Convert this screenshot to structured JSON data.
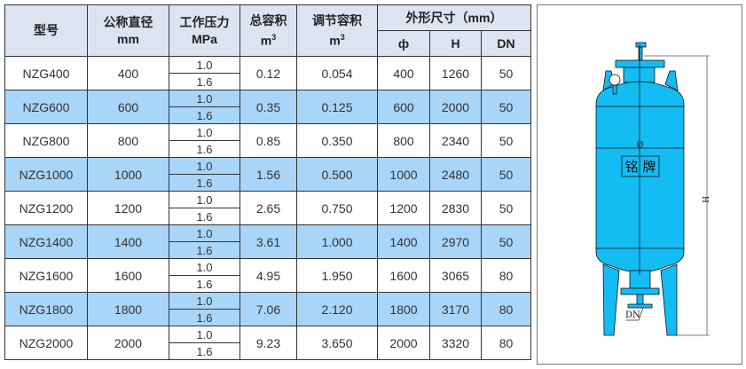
{
  "headers": {
    "model": "型号",
    "diameter": "公称直径",
    "diameter_unit": "mm",
    "pressure": "工作压力",
    "pressure_unit": "MPa",
    "total_volume": "总容积",
    "total_unit": "m",
    "regulating_volume": "调节容积",
    "regulating_unit": "m",
    "superscript": "3",
    "dimensions": "外形尺寸（mm）",
    "phi": "ф",
    "h": "H",
    "dn": "DN"
  },
  "rows": [
    {
      "model": "NZG400",
      "diameter": "400",
      "p1": "1.0",
      "p2": "1.6",
      "total": "0.12",
      "reg": "0.054",
      "phi": "400",
      "h": "1260",
      "dn": "50"
    },
    {
      "model": "NZG600",
      "diameter": "600",
      "p1": "1.0",
      "p2": "1.6",
      "total": "0.35",
      "reg": "0.125",
      "phi": "600",
      "h": "2000",
      "dn": "50"
    },
    {
      "model": "NZG800",
      "diameter": "800",
      "p1": "1.0",
      "p2": "1.6",
      "total": "0.85",
      "reg": "0.350",
      "phi": "800",
      "h": "2340",
      "dn": "50"
    },
    {
      "model": "NZG1000",
      "diameter": "1000",
      "p1": "1.0",
      "p2": "1.6",
      "total": "1.56",
      "reg": "0.500",
      "phi": "1000",
      "h": "2480",
      "dn": "50"
    },
    {
      "model": "NZG1200",
      "diameter": "1200",
      "p1": "1.0",
      "p2": "1.6",
      "total": "2.65",
      "reg": "0.750",
      "phi": "1200",
      "h": "2830",
      "dn": "50"
    },
    {
      "model": "NZG1400",
      "diameter": "1400",
      "p1": "1.0",
      "p2": "1.6",
      "total": "3.61",
      "reg": "1.000",
      "phi": "1400",
      "h": "2970",
      "dn": "50"
    },
    {
      "model": "NZG1600",
      "diameter": "1600",
      "p1": "1.0",
      "p2": "1.6",
      "total": "4.95",
      "reg": "1.950",
      "phi": "1600",
      "h": "3065",
      "dn": "80"
    },
    {
      "model": "NZG1800",
      "diameter": "1800",
      "p1": "1.0",
      "p2": "1.6",
      "total": "7.06",
      "reg": "2.120",
      "phi": "1800",
      "h": "3170",
      "dn": "80"
    },
    {
      "model": "NZG2000",
      "diameter": "2000",
      "p1": "1.0",
      "p2": "1.6",
      "total": "9.23",
      "reg": "3.650",
      "phi": "2000",
      "h": "3320",
      "dn": "80"
    }
  ],
  "diagram": {
    "nameplate": "铭 牌",
    "height_label": "H",
    "dn_label": "DN",
    "diameter_label": "Ø",
    "tank_color": "#14bcf4",
    "alt_row_color": "#a8d5f8",
    "header_color": "#dce4f2"
  }
}
